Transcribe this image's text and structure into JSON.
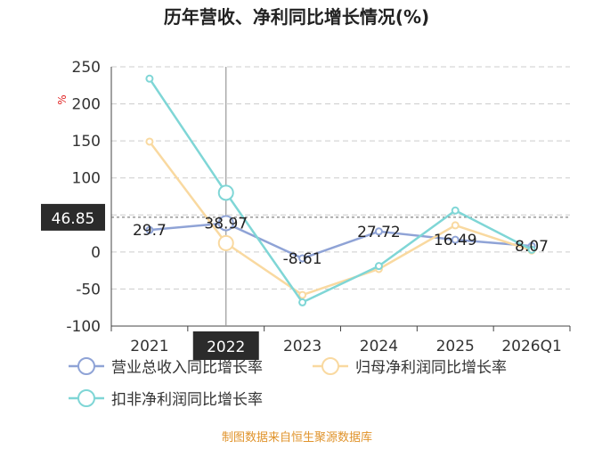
{
  "chart_data": {
    "type": "line",
    "title": "历年营收、净利同比增长情况(%)",
    "yunit": "%",
    "xlabel": "",
    "ylabel": "",
    "categories": [
      "2021",
      "2022",
      "2023",
      "2024",
      "2025",
      "2026Q1"
    ],
    "ylim": [
      -100,
      250
    ],
    "yticks": [
      250,
      200,
      150,
      100,
      50,
      0,
      -50,
      -100
    ],
    "grid": true,
    "legend_position": "bottom",
    "series": [
      {
        "name": "营业总收入同比增长率",
        "color": "#8fa3d6",
        "values": [
          29.7,
          38.97,
          -8.61,
          27.72,
          16.49,
          8.07
        ],
        "labels": [
          "29.7",
          "38.97",
          "-8.61",
          "27.72",
          "16.49",
          "8.07"
        ]
      },
      {
        "name": "归母净利润同比增长率",
        "color": "#f9d9a0",
        "values": [
          149,
          12,
          -58,
          -23,
          36,
          2
        ]
      },
      {
        "name": "扣非净利润同比增长率",
        "color": "#7fd6d6",
        "values": [
          234,
          80,
          -68,
          -19,
          56,
          3
        ]
      }
    ],
    "crosshair": {
      "category": "2022",
      "y_value": 46.85,
      "y_label": "46.85"
    }
  },
  "source_text": "制图数据来自恒生聚源数据库"
}
